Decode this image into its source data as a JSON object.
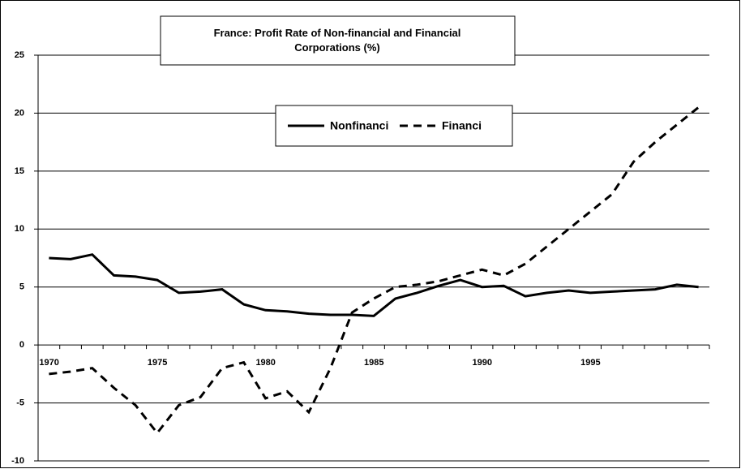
{
  "chart_data": {
    "type": "line",
    "title": "France: Profit Rate of Non-financial and Financial Corporations (%)",
    "categories": [
      "1970",
      null,
      null,
      null,
      null,
      "1975",
      null,
      null,
      null,
      null,
      "1980",
      null,
      null,
      null,
      null,
      "1985",
      null,
      null,
      null,
      null,
      "1990",
      null,
      null,
      null,
      null,
      "1995",
      null,
      null,
      null,
      null,
      null
    ],
    "series": [
      {
        "name": "Nonfinanci",
        "color": "#000000",
        "line_style": "solid",
        "values": [
          7.5,
          7.4,
          7.8,
          6.0,
          5.9,
          5.6,
          4.5,
          4.6,
          4.8,
          3.5,
          3.0,
          2.9,
          2.7,
          2.6,
          2.6,
          2.5,
          4.0,
          4.5,
          5.1,
          5.6,
          5.0,
          5.1,
          4.2,
          4.5,
          4.7,
          4.5,
          4.6,
          4.7,
          4.8,
          5.2,
          5.0
        ]
      },
      {
        "name": "Financi",
        "color": "#000000",
        "line_style": "dashed",
        "values": [
          -2.5,
          -2.3,
          -2.0,
          -3.7,
          -5.2,
          -7.6,
          -5.2,
          -4.5,
          -2.0,
          -1.5,
          -4.6,
          -4.0,
          -5.8,
          -2.0,
          2.8,
          4.0,
          5.0,
          5.2,
          5.5,
          6.0,
          6.5,
          6.0,
          7.0,
          8.5,
          10.0,
          11.5,
          13.0,
          15.8,
          17.5,
          19.0,
          20.5
        ]
      }
    ],
    "ylim": [
      -10,
      25
    ],
    "yticks": [
      -10,
      -5,
      0,
      5,
      10,
      15,
      20,
      25
    ],
    "grid": true
  }
}
